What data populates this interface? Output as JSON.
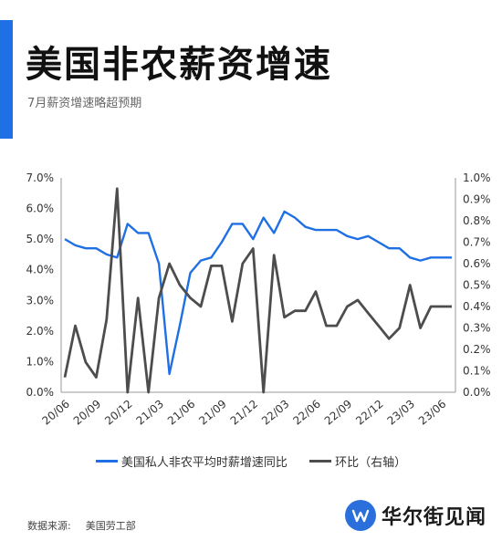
{
  "header": {
    "title": "美国非农薪资增速",
    "subtitle": "7月薪资增速略超预期"
  },
  "legend": {
    "series_left": "美国私人非农平均时薪增速同比",
    "series_right": "环比（右轴）"
  },
  "footer": {
    "source_label": "数据来源:",
    "source_value": "美国劳工部",
    "brand": "华尔街见闻"
  },
  "colors": {
    "accent": "#1f6fe5",
    "series_left": "#1f6fe5",
    "series_right": "#4d4d4d",
    "brand": "#2a6fdb"
  },
  "chart_data": {
    "type": "line",
    "x": [
      "20/06",
      "20/07",
      "20/08",
      "20/09",
      "20/10",
      "20/11",
      "20/12",
      "21/01",
      "21/02",
      "21/03",
      "21/04",
      "21/05",
      "21/06",
      "21/07",
      "21/08",
      "21/09",
      "21/10",
      "21/11",
      "21/12",
      "22/01",
      "22/02",
      "22/03",
      "22/04",
      "22/05",
      "22/06",
      "22/07",
      "22/08",
      "22/09",
      "22/10",
      "22/11",
      "22/12",
      "23/01",
      "23/02",
      "23/03",
      "23/04",
      "23/05",
      "23/06",
      "23/07"
    ],
    "x_tick_labels": [
      "20/06",
      "20/09",
      "20/12",
      "21/03",
      "21/06",
      "21/09",
      "21/12",
      "22/03",
      "22/06",
      "22/09",
      "22/12",
      "23/03",
      "23/06"
    ],
    "series": [
      {
        "name": "美国私人非农平均时薪增速同比",
        "axis": "left",
        "values": [
          5.0,
          4.8,
          4.7,
          4.7,
          4.5,
          4.4,
          5.5,
          5.2,
          5.2,
          4.2,
          0.6,
          2.2,
          3.9,
          4.3,
          4.4,
          4.9,
          5.5,
          5.5,
          5.0,
          5.7,
          5.2,
          5.9,
          5.7,
          5.4,
          5.3,
          5.3,
          5.3,
          5.1,
          5.0,
          5.1,
          4.9,
          4.7,
          4.7,
          4.4,
          4.3,
          4.4,
          4.4,
          4.4
        ]
      },
      {
        "name": "环比（右轴）",
        "axis": "right",
        "values": [
          0.07,
          0.31,
          0.14,
          0.07,
          0.34,
          0.95,
          0.0,
          0.44,
          0.0,
          0.44,
          0.6,
          0.5,
          0.44,
          0.4,
          0.59,
          0.59,
          0.33,
          0.6,
          0.67,
          0.0,
          0.64,
          0.35,
          0.38,
          0.38,
          0.47,
          0.31,
          0.31,
          0.4,
          0.43,
          0.37,
          0.31,
          0.25,
          0.3,
          0.5,
          0.3,
          0.4,
          0.4,
          0.4
        ]
      }
    ],
    "y_left": {
      "ticks": [
        "0.0%",
        "1.0%",
        "2.0%",
        "3.0%",
        "4.0%",
        "5.0%",
        "6.0%",
        "7.0%"
      ],
      "lim": [
        0,
        7
      ]
    },
    "y_right": {
      "ticks": [
        "0.0%",
        "0.1%",
        "0.2%",
        "0.3%",
        "0.4%",
        "0.5%",
        "0.6%",
        "0.7%",
        "0.8%",
        "0.9%",
        "1.0%"
      ],
      "lim": [
        0,
        1.0
      ]
    },
    "grid": false,
    "legend_position": "bottom"
  }
}
